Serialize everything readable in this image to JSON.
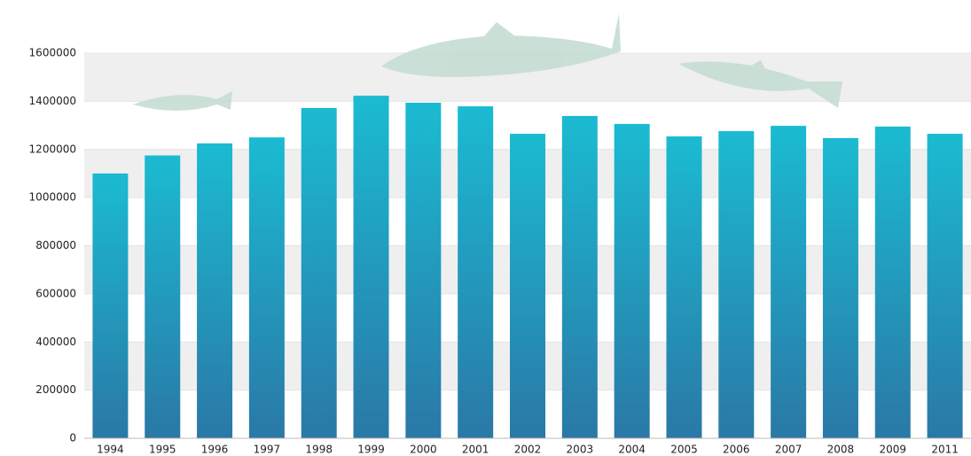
{
  "chart_data": {
    "type": "bar",
    "categories": [
      "1994",
      "1995",
      "1996",
      "1997",
      "1998",
      "1999",
      "2000",
      "2001",
      "2002",
      "2003",
      "2004",
      "2005",
      "2006",
      "2007",
      "2008",
      "2009",
      "2011"
    ],
    "values": [
      1100000,
      1175000,
      1225000,
      1250000,
      1372000,
      1423000,
      1394000,
      1379000,
      1265000,
      1339000,
      1306000,
      1254000,
      1276000,
      1298000,
      1247000,
      1295000,
      1265000
    ],
    "color_top": "#1bbbd2",
    "color_bottom": "#2a78a6",
    "ylim": [
      0,
      1600000
    ],
    "yticks": [
      0,
      200000,
      400000,
      600000,
      800000,
      1000000,
      1200000,
      1400000,
      1600000
    ],
    "grid": true
  }
}
